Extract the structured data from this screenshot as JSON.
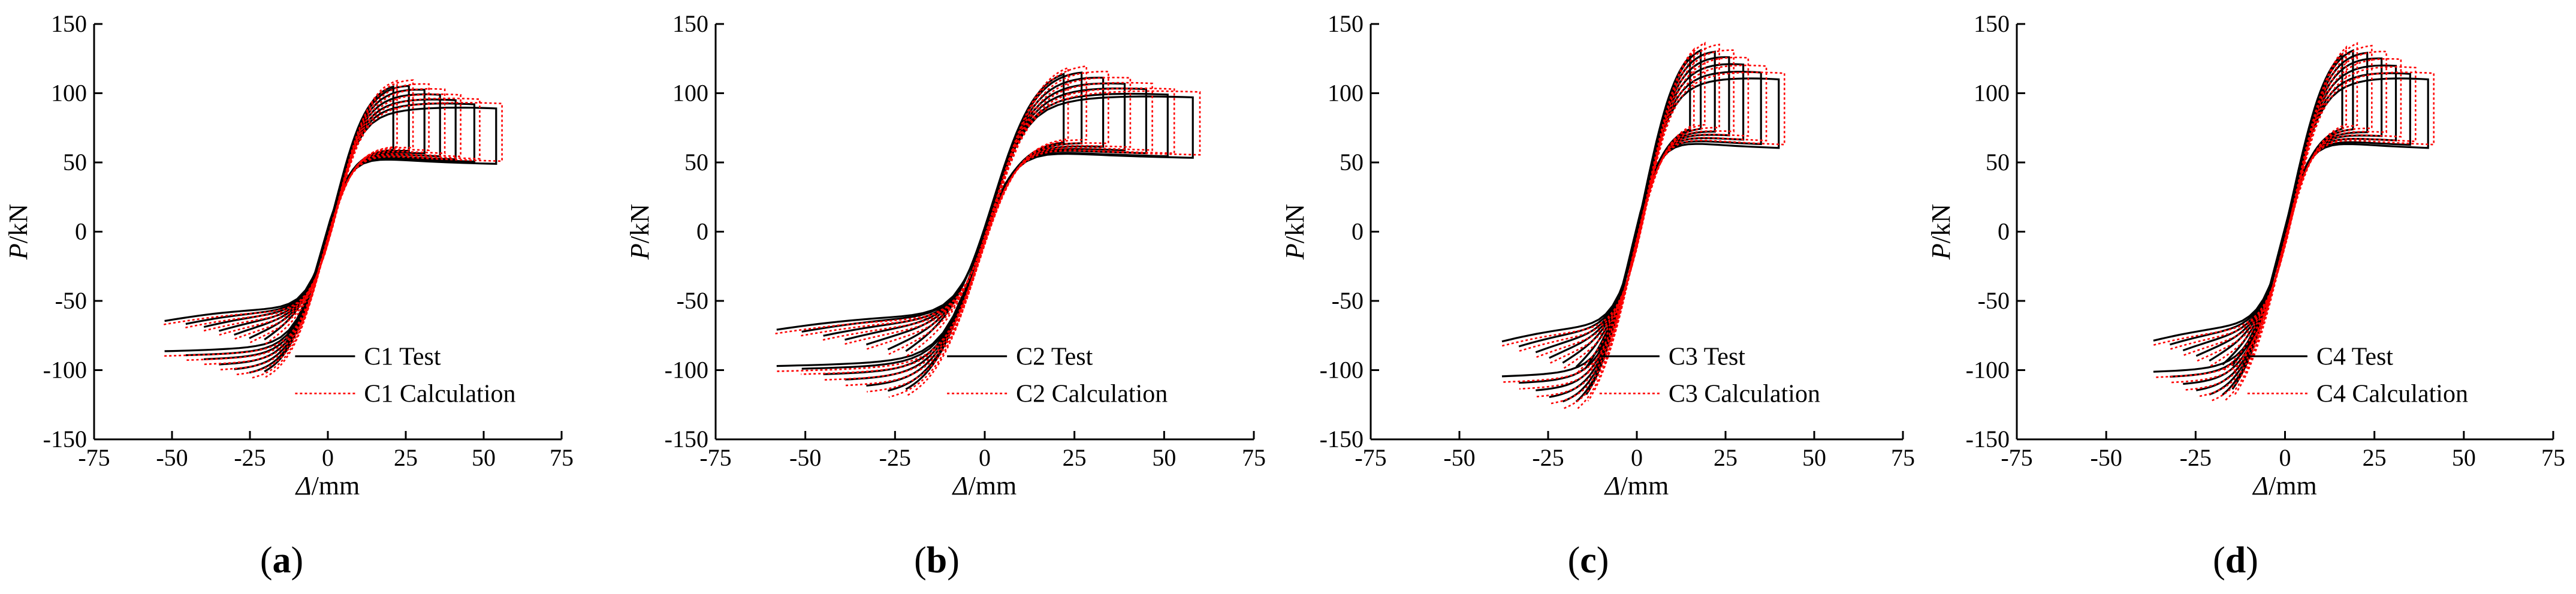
{
  "figure": {
    "panel_labels": [
      "a",
      "b",
      "c",
      "d"
    ]
  },
  "colors": {
    "test": "#000000",
    "calculation": "#ff0000"
  },
  "chart_data": [
    {
      "type": "line",
      "panel": "a",
      "xlabel_italic": "Δ",
      "xlabel_unit": "/mm",
      "ylabel_italic": "P",
      "ylabel_unit": "/kN",
      "xlim": [
        -75,
        75
      ],
      "ylim": [
        -150,
        150
      ],
      "xticks": [
        "-75",
        "-50",
        "-25",
        "0",
        "25",
        "50",
        "75"
      ],
      "yticks": [
        "150",
        "100",
        "50",
        "0",
        "-50",
        "-100",
        "-150"
      ],
      "legend": [
        "C1 Test",
        "C1 Calculation"
      ],
      "legend_position": "bottom-right",
      "hysteresis": {
        "peak_disp": [
          21,
          26,
          31,
          36,
          41,
          47,
          54
        ],
        "peak_load": [
          110,
          107,
          103,
          99,
          95,
          92,
          89
        ],
        "init_stiffness": 9.5,
        "pinch": 0.55,
        "asym": 0.97
      },
      "series": [
        {
          "name": "C1 Test",
          "style": "solid"
        },
        {
          "name": "C1 Calculation",
          "style": "dotted"
        }
      ]
    },
    {
      "type": "line",
      "panel": "b",
      "xlabel_italic": "Δ",
      "xlabel_unit": "/mm",
      "ylabel_italic": "P",
      "ylabel_unit": "/kN",
      "xlim": [
        -75,
        75
      ],
      "ylim": [
        -150,
        150
      ],
      "xticks": [
        "-75",
        "-50",
        "-25",
        "0",
        "25",
        "50",
        "75"
      ],
      "yticks": [
        "150",
        "100",
        "50",
        "0",
        "-50",
        "-100",
        "-150"
      ],
      "legend": [
        "C2 Test",
        "C2 Calculation"
      ],
      "legend_position": "bottom-right",
      "hysteresis": {
        "peak_disp": [
          22,
          27,
          33,
          39,
          45,
          51,
          58
        ],
        "peak_load": [
          122,
          118,
          112,
          107,
          103,
          99,
          97
        ],
        "init_stiffness": 9.0,
        "pinch": 0.5,
        "asym": 1.0
      },
      "series": [
        {
          "name": "C2 Test",
          "style": "solid"
        },
        {
          "name": "C2 Calculation",
          "style": "dotted"
        }
      ]
    },
    {
      "type": "line",
      "panel": "c",
      "xlabel_italic": "Δ",
      "xlabel_unit": "/mm",
      "ylabel_italic": "P",
      "ylabel_unit": "/kN",
      "xlim": [
        -75,
        75
      ],
      "ylim": [
        -150,
        150
      ],
      "xticks": [
        "-75",
        "-50",
        "-25",
        "0",
        "25",
        "50",
        "75"
      ],
      "yticks": [
        "150",
        "100",
        "50",
        "0",
        "-50",
        "-100",
        "-150"
      ],
      "legend": [
        "C3 Test",
        "C3 Calculation"
      ],
      "legend_position": "bottom-right",
      "hysteresis": {
        "peak_disp": [
          15,
          18,
          22,
          26,
          30,
          35,
          40
        ],
        "peak_load": [
          145,
          140,
          133,
          127,
          121,
          115,
          110
        ],
        "init_stiffness": 13.0,
        "pinch": 0.5,
        "asym": 0.95
      },
      "series": [
        {
          "name": "C3 Test",
          "style": "solid"
        },
        {
          "name": "C3 Calculation",
          "style": "dotted"
        }
      ]
    },
    {
      "type": "line",
      "panel": "d",
      "xlabel_italic": "Δ",
      "xlabel_unit": "/mm",
      "ylabel_italic": "P",
      "ylabel_unit": "/kN",
      "xlim": [
        -75,
        75
      ],
      "ylim": [
        -150,
        150
      ],
      "xticks": [
        "-75",
        "-50",
        "-25",
        "0",
        "25",
        "50",
        "75"
      ],
      "yticks": [
        "150",
        "100",
        "50",
        "0",
        "-50",
        "-100",
        "-150"
      ],
      "legend": [
        "C4 Test",
        "C4 Calculation"
      ],
      "legend_position": "bottom-right",
      "hysteresis": {
        "peak_disp": [
          16,
          19,
          23,
          27,
          31,
          35,
          40
        ],
        "peak_load": [
          145,
          139,
          132,
          126,
          120,
          114,
          110
        ],
        "init_stiffness": 12.5,
        "pinch": 0.5,
        "asym": 0.92
      },
      "series": [
        {
          "name": "C4 Test",
          "style": "solid"
        },
        {
          "name": "C4 Calculation",
          "style": "dotted"
        }
      ]
    }
  ]
}
